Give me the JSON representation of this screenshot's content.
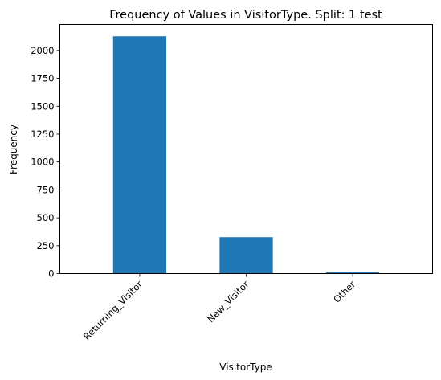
{
  "chart_data": {
    "type": "bar",
    "title": "Frequency of Values in VisitorType. Split: 1 test",
    "xlabel": "VisitorType",
    "ylabel": "Frequency",
    "categories": [
      "Returning_Visitor",
      "New_Visitor",
      "Other"
    ],
    "values": [
      2127,
      326,
      12
    ],
    "ylim": [
      0,
      2233
    ],
    "yticks": [
      0,
      250,
      500,
      750,
      1000,
      1250,
      1500,
      1750,
      2000
    ],
    "grid": false,
    "legend": "none",
    "bar_color": "#1f77b4"
  }
}
